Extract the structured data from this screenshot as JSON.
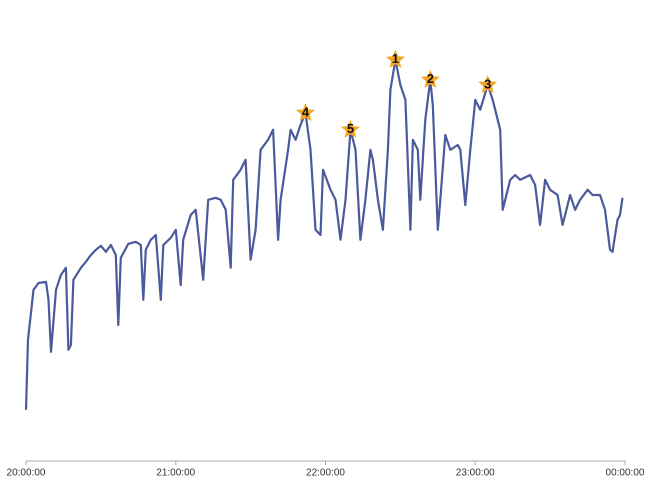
{
  "chart_data": {
    "type": "line",
    "color": "#4b5a9b",
    "marker_color": "#f5a623",
    "xlim": [
      "20:00:00",
      "00:00:00"
    ],
    "xticks": [
      "20:00:00",
      "21:00:00",
      "22:00:00",
      "23:00:00",
      "00:00:00"
    ],
    "ylim": [
      0,
      100
    ],
    "x": [
      "20:00:00",
      "20:00:48",
      "20:03:00",
      "20:05:00",
      "20:08:00",
      "20:09:00",
      "20:10:00",
      "20:12:00",
      "20:14:00",
      "20:16:00",
      "20:17:00",
      "20:18:00",
      "20:19:00",
      "20:22:00",
      "20:24:00",
      "20:26:00",
      "20:28:00",
      "20:30:00",
      "20:32:00",
      "20:34:00",
      "20:36:00",
      "20:37:00",
      "20:38:00",
      "20:41:00",
      "20:44:00",
      "20:46:00",
      "20:47:00",
      "20:48:00",
      "20:50:00",
      "20:52:00",
      "20:54:00",
      "20:55:00",
      "20:58:00",
      "21:00:00",
      "21:02:00",
      "21:03:00",
      "21:06:00",
      "21:08:00",
      "21:11:00",
      "21:13:00",
      "21:16:00",
      "21:18:00",
      "21:20:00",
      "21:22:00",
      "21:23:00",
      "21:26:00",
      "21:28:00",
      "21:30:00",
      "21:32:00",
      "21:34:00",
      "21:37:00",
      "21:39:00",
      "21:41:00",
      "21:42:00",
      "21:45:00",
      "21:46:00",
      "21:48:00",
      "21:50:00",
      "21:52:00",
      "21:54:00",
      "21:56:00",
      "21:58:00",
      "21:59:00",
      "22:02:00",
      "22:04:00",
      "22:06:00",
      "22:08:00",
      "22:10:00",
      "22:12:00",
      "22:14:00",
      "22:16:00",
      "22:18:00",
      "22:19:00",
      "22:21:00",
      "22:23:00",
      "22:25:00",
      "22:26:00",
      "22:28:00",
      "22:30:00",
      "22:32:00",
      "22:34:00",
      "22:35:00",
      "22:37:00",
      "22:38:00",
      "22:40:00",
      "22:42:00",
      "22:43:00",
      "22:45:00",
      "22:46:00",
      "22:48:00",
      "22:50:00",
      "22:53:00",
      "22:54:00",
      "22:56:00",
      "22:58:00",
      "23:00:00",
      "23:02:00",
      "23:05:00",
      "23:07:00",
      "23:10:00",
      "23:11:00",
      "23:14:00",
      "23:16:00",
      "23:18:00",
      "23:22:00",
      "23:24:00",
      "23:26:00",
      "23:28:00",
      "23:30:00",
      "23:33:00",
      "23:35:00",
      "23:38:00",
      "23:40:00",
      "23:42:00",
      "23:45:00",
      "23:47:00",
      "23:50:00",
      "23:52:00",
      "23:54:00",
      "23:55:00",
      "23:57:00",
      "23:58:00",
      "23:59:00"
    ],
    "values": [
      12.8,
      30.3,
      42.8,
      44.5,
      44.8,
      40.3,
      27.3,
      42.8,
      46.5,
      48.3,
      27.8,
      29,
      45.3,
      48.3,
      49.8,
      51.5,
      52.8,
      53.8,
      52.3,
      54,
      51.5,
      34,
      50.8,
      54.3,
      54.8,
      54,
      40.3,
      52.8,
      55.3,
      56.5,
      40.3,
      54,
      55.8,
      57.8,
      44,
      55.3,
      61.5,
      62.8,
      45.3,
      65.3,
      65.8,
      65.3,
      62.8,
      48.3,
      70.3,
      72.8,
      75.3,
      50.3,
      57.8,
      77.8,
      80.3,
      82.8,
      55.3,
      65.3,
      77.8,
      82.8,
      80.3,
      84,
      87,
      77.8,
      57.8,
      56.5,
      72.8,
      67.8,
      65.3,
      55.3,
      65.3,
      82.8,
      77.8,
      55.3,
      65.3,
      77.8,
      75.3,
      65.3,
      57.8,
      77.8,
      92.8,
      100.3,
      94,
      90.3,
      57.8,
      80.3,
      77.8,
      65.3,
      85.3,
      95.3,
      89,
      57.8,
      65.3,
      81.5,
      77.8,
      79,
      77.8,
      64,
      77.8,
      90.3,
      87.8,
      94,
      90.3,
      82.8,
      62.8,
      70.3,
      71.5,
      70.3,
      71.5,
      69,
      59,
      70.3,
      67.8,
      66.5,
      59,
      66.5,
      62.8,
      65.3,
      67.8,
      66.5,
      66.5,
      62.8,
      52.8,
      52.3,
      60.3,
      61.5,
      65.8
    ],
    "annotations": [
      {
        "label": "1",
        "x": "22:28:00"
      },
      {
        "label": "2",
        "x": "22:42:00"
      },
      {
        "label": "3",
        "x": "23:05:00"
      },
      {
        "label": "4",
        "x": "21:52:00"
      },
      {
        "label": "5",
        "x": "22:10:00"
      }
    ]
  }
}
